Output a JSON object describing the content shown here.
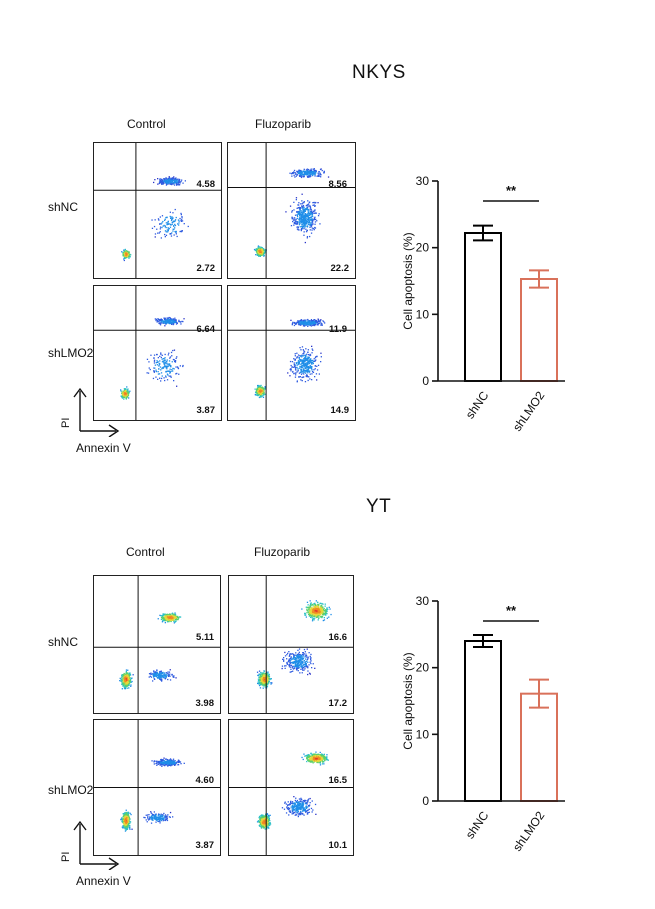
{
  "panels": [
    {
      "title": "NKYS",
      "columns": [
        "Control",
        "Fluzoparib"
      ],
      "rows": [
        "shNC",
        "shLMO2"
      ],
      "quadrant_values": [
        [
          [
            "4.58",
            "2.72"
          ],
          [
            "8.56",
            "22.2"
          ]
        ],
        [
          [
            "6.64",
            "3.87"
          ],
          [
            "11.9",
            "14.9"
          ]
        ]
      ],
      "y_axis_label": "PI",
      "x_axis_label": "Annexin V"
    },
    {
      "title": "YT",
      "columns": [
        "Control",
        "Fluzoparib"
      ],
      "rows": [
        "shNC",
        "shLMO2"
      ],
      "quadrant_values": [
        [
          [
            "5.11",
            "3.98"
          ],
          [
            "16.6",
            "17.2"
          ]
        ],
        [
          [
            "4.60",
            "3.87"
          ],
          [
            "16.5",
            "10.1"
          ]
        ]
      ],
      "y_axis_label": "PI",
      "x_axis_label": "Annexin V"
    }
  ],
  "chart_data": [
    {
      "type": "bar",
      "categories": [
        "shNC",
        "shLMO2"
      ],
      "values": [
        22.2,
        15.3
      ],
      "errors": [
        1.1,
        1.3
      ],
      "ylabel": "Cell apoptosis (%)",
      "ylim": [
        0,
        30
      ],
      "yticks": [
        "0",
        "10",
        "20",
        "30"
      ],
      "significance": "**",
      "colors": [
        "#000000",
        "#d9715a"
      ]
    },
    {
      "type": "bar",
      "categories": [
        "shNC",
        "shLMO2"
      ],
      "values": [
        24.0,
        16.1
      ],
      "errors": [
        0.9,
        2.1
      ],
      "ylabel": "Cell apoptosis (%)",
      "ylim": [
        0,
        30
      ],
      "yticks": [
        "0",
        "10",
        "20",
        "30"
      ],
      "significance": "**",
      "colors": [
        "#000000",
        "#d9715a"
      ]
    }
  ]
}
